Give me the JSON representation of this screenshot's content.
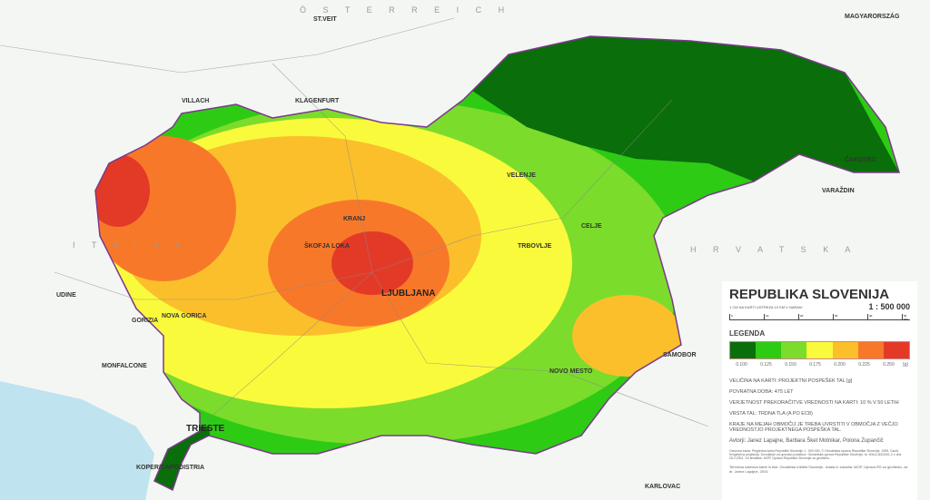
{
  "map": {
    "colors": {
      "0.100": "#0a6e0a",
      "0.125": "#2ecb14",
      "0.150": "#7bdc2c",
      "0.175": "#fafa3c",
      "0.200": "#fbbf2c",
      "0.225": "#f8782a",
      "0.250": "#e33a28"
    },
    "places": [
      {
        "name": "VILLACH",
        "cls": "lbl"
      },
      {
        "name": "KLAGENFURT",
        "cls": "lbl"
      },
      {
        "name": "ST.VEIT",
        "cls": "lbl"
      },
      {
        "name": "UDINE",
        "cls": "lbl"
      },
      {
        "name": "GORIZIA",
        "cls": "lbl"
      },
      {
        "name": "NOVA GORICA",
        "cls": "lbl"
      },
      {
        "name": "MONFALCONE",
        "cls": "lbl"
      },
      {
        "name": "TRIESTE",
        "cls": "lbl big"
      },
      {
        "name": "KOPER/CAPODISTRIA",
        "cls": "lbl"
      },
      {
        "name": "KRANJ",
        "cls": "lbl"
      },
      {
        "name": "LJUBLJANA",
        "cls": "lbl big"
      },
      {
        "name": "ŠKOFJA LOKA",
        "cls": "lbl"
      },
      {
        "name": "VELENJE",
        "cls": "lbl"
      },
      {
        "name": "CELJE",
        "cls": "lbl"
      },
      {
        "name": "TRBOVLJE",
        "cls": "lbl"
      },
      {
        "name": "NOVO MESTO",
        "cls": "lbl"
      },
      {
        "name": "SAMOBOR",
        "cls": "lbl"
      },
      {
        "name": "KARLOVAC",
        "cls": "lbl"
      },
      {
        "name": "VARAŽDIN",
        "cls": "lbl"
      },
      {
        "name": "ČAKOVEC",
        "cls": "lbl"
      },
      {
        "name": "MAGYARORSZÁG",
        "cls": "lbl"
      }
    ],
    "countries": [
      "Ö S T E R R E I C H",
      "I T A L I A",
      "H R V A T S K A"
    ]
  },
  "panel": {
    "title": "REPUBLIKA SLOVENIJA",
    "scale_note": "1 CM NA KARTI USTREZA 10 KM V NARAVI",
    "scale": "1 : 500 000",
    "scale_ticks": [
      "0",
      "10",
      "20",
      "30",
      "40",
      "50 KM"
    ],
    "legend_title": "LEGENDA",
    "legend_values": [
      "0.100",
      "0.125",
      "0.150",
      "0.175",
      "0.200",
      "0.225",
      "0.250"
    ],
    "legend_unit": "[g]",
    "lines": [
      "VELIČINA NA KARTI: PROJEKTNI POSPEŠEK TAL [g]",
      "POVRATNA DOBA: 475 LET",
      "VERJETNOST PREKORAČITVE VREDNOSTI NA KARTI: 10 % V 50 LETIH",
      "VRSTA TAL: TRDNA TLA (A PO EC8)",
      "KRAJE NA MEJAH OBMOČIJ JE TREBA UVRSTITI V OBMOČJA Z VEČJO VREDNOSTJO PROJEKTNEGA POSPEŠKA TAL."
    ],
    "authors": "Avtorji: Janez Lapajne, Barbara Šket Motnikar, Polona Zupančič",
    "sources": "Osnovna karta: Pregledna karta Republike Slovenije 1 : 500 000, © Geodetska uprava Republike Slovenije, 1995. Gauß-Krügerjeva projekcija. Dovoljenje za uporabo podatkov: Geodetska uprava Republike Slovenije, št. 90411-83/2001-2 z dne 28.2.2001. Vir tematike: MOP, Uprava Republike Slovenije za geofiziko.",
    "production": "Tehnična izdelava karte in tisk: Geodetski inštitut Slovenije. Izdala in založila: MOP, Uprava RS za geofiziko, za dr. Janez Lapajne, 2001"
  }
}
